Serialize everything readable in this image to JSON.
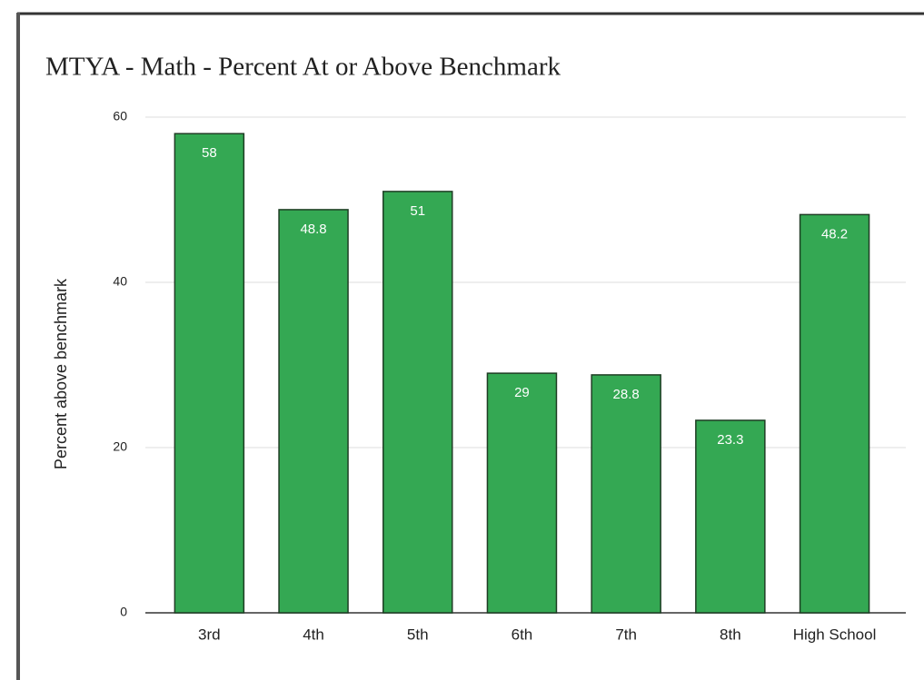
{
  "chart_data": {
    "type": "bar",
    "title": "MTYA - Math - Percent At or Above Benchmark",
    "y_axis_label": "Percent above benchmark",
    "categories": [
      "3rd",
      "4th",
      "5th",
      "6th",
      "7th",
      "8th",
      "High School"
    ],
    "values": [
      58,
      48.8,
      51,
      29,
      28.8,
      23.3,
      48.2
    ],
    "color": "#34a853",
    "ylim": [
      0,
      60
    ],
    "yticks": [
      0,
      20,
      40,
      60
    ],
    "grid": true
  }
}
